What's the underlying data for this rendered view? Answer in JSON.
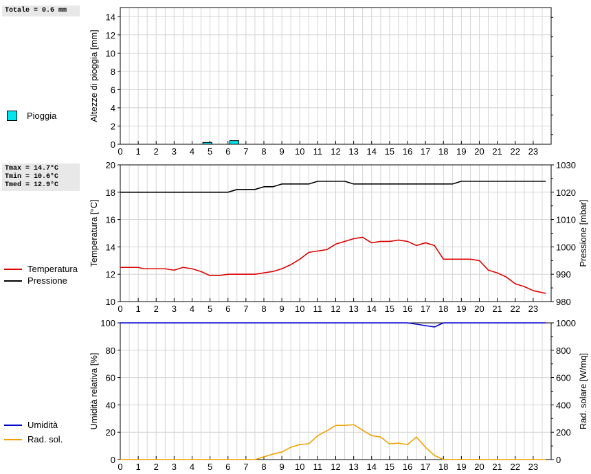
{
  "panels": {
    "rain": {
      "stats": [
        "Totale = 0.6 mm"
      ],
      "legend": [
        {
          "label": "Pioggia",
          "color": "#00e6f0",
          "shape": "box"
        }
      ]
    },
    "temp": {
      "stats": [
        "Tmax = 14.7°C",
        "Tmin = 10.6°C",
        "Tmed = 12.9°C"
      ],
      "legend": [
        {
          "label": "Temperatura",
          "color": "#dd0000",
          "shape": "line"
        },
        {
          "label": "Pressione",
          "color": "#000000",
          "shape": "line"
        }
      ]
    },
    "hum": {
      "legend": [
        {
          "label": "Umidità",
          "color": "#0000cc",
          "shape": "line"
        },
        {
          "label": "Rad. sol.",
          "color": "#f0a000",
          "shape": "line"
        }
      ]
    }
  },
  "chart_data": [
    {
      "type": "bar",
      "ylabel": "Altezze di pioggia [mm]",
      "ylim": [
        0,
        15
      ],
      "yticks": [
        0,
        2,
        4,
        6,
        8,
        10,
        12,
        14
      ],
      "xlim": [
        0,
        24
      ],
      "xticks": [
        0,
        1,
        2,
        3,
        4,
        5,
        6,
        7,
        8,
        9,
        10,
        11,
        12,
        13,
        14,
        15,
        16,
        17,
        18,
        19,
        20,
        21,
        22,
        23
      ],
      "grid": true,
      "series": [
        {
          "name": "Pioggia",
          "color": "#00e6f0",
          "bar_width": 0.5,
          "x": [
            4.85,
            6.35
          ],
          "values": [
            0.2,
            0.4
          ]
        }
      ]
    },
    {
      "type": "line",
      "ylabel": "Temperatura [°C]",
      "ylim": [
        10,
        20
      ],
      "yticks": [
        10,
        12,
        14,
        16,
        18,
        20
      ],
      "y2label": "Pressione [mbar]",
      "y2lim": [
        980,
        1030
      ],
      "y2ticks": [
        980,
        990,
        1000,
        1010,
        1020,
        1030
      ],
      "xlim": [
        0,
        24
      ],
      "xticks": [
        0,
        1,
        2,
        3,
        4,
        5,
        6,
        7,
        8,
        9,
        10,
        11,
        12,
        13,
        14,
        15,
        16,
        17,
        18,
        19,
        20,
        21,
        22,
        23
      ],
      "grid": true,
      "series": [
        {
          "name": "Temperatura",
          "axis": "left",
          "color": "#dd0000",
          "x": [
            0,
            1,
            1.3,
            2.5,
            3,
            3.5,
            4,
            4.5,
            5,
            5.5,
            6,
            7,
            7.5,
            8,
            8.5,
            9,
            9.5,
            10,
            10.5,
            11,
            11.5,
            12,
            12.5,
            13,
            13.5,
            14,
            14.5,
            15,
            15.5,
            16,
            16.5,
            17,
            17.5,
            18,
            18.5,
            19,
            19.5,
            20,
            20.5,
            21,
            21.5,
            22,
            22.5,
            23,
            23.7
          ],
          "values": [
            12.5,
            12.5,
            12.4,
            12.4,
            12.3,
            12.5,
            12.4,
            12.2,
            11.9,
            11.9,
            12.0,
            12.0,
            12.0,
            12.1,
            12.2,
            12.4,
            12.7,
            13.1,
            13.6,
            13.7,
            13.8,
            14.2,
            14.4,
            14.6,
            14.7,
            14.3,
            14.4,
            14.4,
            14.5,
            14.4,
            14.1,
            14.3,
            14.1,
            13.1,
            13.1,
            13.1,
            13.1,
            13.0,
            12.3,
            12.1,
            11.8,
            11.3,
            11.1,
            10.8,
            10.6
          ]
        },
        {
          "name": "Pressione",
          "axis": "right",
          "color": "#000000",
          "x": [
            0,
            6,
            6.5,
            7.5,
            8,
            8.5,
            9,
            10.5,
            11,
            12.5,
            13,
            18.5,
            19,
            23.7
          ],
          "values": [
            1020,
            1020,
            1021,
            1021,
            1022,
            1022,
            1023,
            1023,
            1024,
            1024,
            1023,
            1023,
            1024,
            1024
          ]
        }
      ]
    },
    {
      "type": "line",
      "ylabel": "Umidità relativa [%]",
      "ylim": [
        0,
        100
      ],
      "yticks": [
        0,
        20,
        40,
        60,
        80,
        100
      ],
      "y2label": "Rad. solare [W/mq]",
      "y2lim": [
        0,
        1000
      ],
      "y2ticks": [
        0,
        200,
        400,
        600,
        800,
        1000
      ],
      "xlim": [
        0,
        24
      ],
      "xticks": [
        0,
        1,
        2,
        3,
        4,
        5,
        6,
        7,
        8,
        9,
        10,
        11,
        12,
        13,
        14,
        15,
        16,
        17,
        18,
        19,
        20,
        21,
        22,
        23
      ],
      "grid": true,
      "series": [
        {
          "name": "Umidità",
          "axis": "left",
          "color": "#0000cc",
          "x": [
            0,
            16,
            16.5,
            17,
            17.5,
            18,
            23.7
          ],
          "values": [
            100,
            100,
            99,
            98,
            97,
            100,
            100
          ]
        },
        {
          "name": "Rad. sol.",
          "axis": "right",
          "color": "#f0a000",
          "x": [
            0,
            7.5,
            8,
            8.5,
            9,
            9.5,
            10,
            10.5,
            11,
            11.5,
            12,
            12.5,
            13,
            13.5,
            14,
            14.5,
            15,
            15.5,
            16,
            16.5,
            17,
            17.5,
            18,
            23.7
          ],
          "values": [
            0,
            0,
            20,
            40,
            55,
            90,
            110,
            115,
            175,
            210,
            250,
            250,
            255,
            215,
            175,
            165,
            115,
            120,
            110,
            165,
            90,
            30,
            0,
            0
          ]
        }
      ]
    }
  ]
}
